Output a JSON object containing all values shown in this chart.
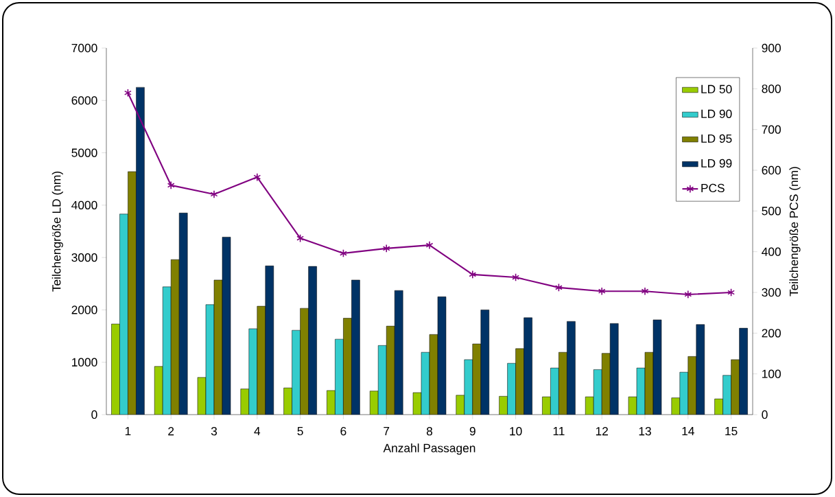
{
  "chart_data": {
    "type": "bar",
    "xlabel": "Anzahl Passagen",
    "ylabel": "Teilchengröße LD (nm)",
    "y2label": "Teilchengröße PCS (nm)",
    "categories": [
      "1",
      "2",
      "3",
      "4",
      "5",
      "6",
      "7",
      "8",
      "9",
      "10",
      "11",
      "12",
      "13",
      "14",
      "15"
    ],
    "series": [
      {
        "name": "LD 50",
        "color": "#99cc00",
        "values": [
          1730,
          920,
          710,
          490,
          510,
          460,
          450,
          420,
          370,
          350,
          340,
          340,
          340,
          320,
          300
        ]
      },
      {
        "name": "LD 90",
        "color": "#33cccc",
        "values": [
          3830,
          2440,
          2100,
          1640,
          1610,
          1440,
          1320,
          1190,
          1050,
          980,
          890,
          860,
          890,
          810,
          750
        ]
      },
      {
        "name": "LD 95",
        "color": "#808000",
        "values": [
          4640,
          2960,
          2570,
          2070,
          2030,
          1840,
          1690,
          1530,
          1350,
          1260,
          1190,
          1170,
          1190,
          1110,
          1050
        ]
      },
      {
        "name": "LD 99",
        "color": "#003366",
        "values": [
          6250,
          3850,
          3390,
          2840,
          2830,
          2570,
          2370,
          2250,
          2000,
          1850,
          1780,
          1740,
          1810,
          1720,
          1650
        ]
      },
      {
        "name": "PCS",
        "color": "#800080",
        "type": "line",
        "axis": "y2",
        "values": [
          790,
          563,
          541,
          583,
          433,
          396,
          408,
          416,
          344,
          337,
          312,
          303,
          303,
          295,
          300
        ]
      }
    ],
    "ylim": [
      0,
      7000
    ],
    "yticks": [
      0,
      1000,
      2000,
      3000,
      4000,
      5000,
      6000,
      7000
    ],
    "y2lim": [
      0,
      900
    ],
    "y2ticks": [
      0,
      100,
      200,
      300,
      400,
      500,
      600,
      700,
      800,
      900
    ],
    "legend": "top right",
    "marker": "cross",
    "grid": false
  }
}
